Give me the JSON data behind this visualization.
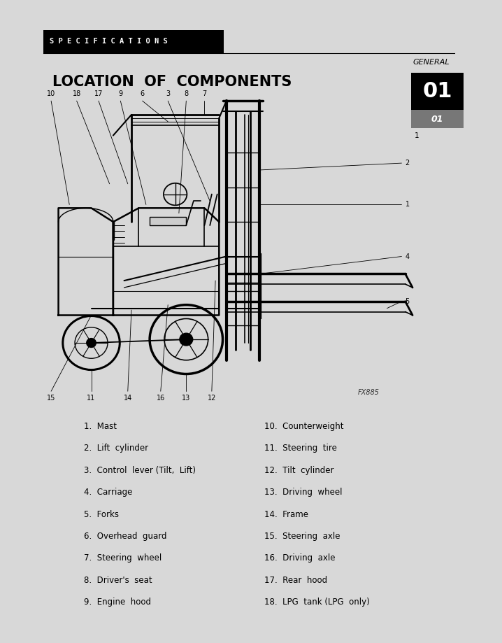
{
  "page_bg": "#d8d8d8",
  "content_bg": "#ffffff",
  "title_specs": "S P E C I F I C A T I O N S",
  "title_general": "GENERAL",
  "title_location": "LOCATION  OF  COMPONENTS",
  "badge_large": "01",
  "badge_small": "01",
  "badge_page": "1",
  "image_caption": "FX885",
  "parts_left": [
    "1.  Mast",
    "2.  Lift  cylinder",
    "3.  Control  lever (Tilt,  Lift)",
    "4.  Carriage",
    "5.  Forks",
    "6.  Overhead  guard",
    "7.  Steering  wheel",
    "8.  Driver's  seat",
    "9.  Engine  hood"
  ],
  "parts_right": [
    "10.  Counterweight",
    "11.  Steering  tire",
    "12.  Tilt  cylinder",
    "13.  Driving  wheel",
    "14.  Frame",
    "15.  Steering  axle",
    "16.  Driving  axle",
    "17.  Rear  hood",
    "18.  LPG  tank (LPG  only)"
  ]
}
